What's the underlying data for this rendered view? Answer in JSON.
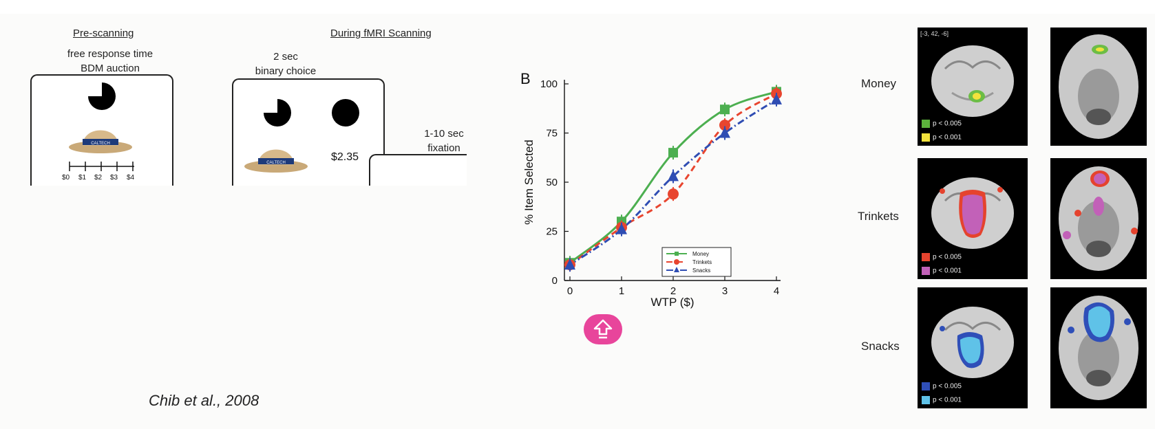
{
  "left_panel": {
    "pre_header": "Pre-scanning",
    "pre_line1": "free response time",
    "pre_line2": "BDM auction",
    "scale_labels": [
      "$0",
      "$1",
      "$2",
      "$3",
      "$4"
    ],
    "fmri_header": "During fMRI Scanning",
    "fmri_line1": "2 sec",
    "fmri_line2": "binary choice",
    "price": "$2.35",
    "fix_line1": "1-10 sec",
    "fix_line2": "fixation",
    "hat_band_text": "CALTECH",
    "citation": "Chib et al., 2008"
  },
  "chart_data": {
    "type": "line",
    "panel_letter": "B",
    "xlabel": "WTP ($)",
    "ylabel": "% Item Selected",
    "x": [
      0,
      1,
      2,
      3,
      4
    ],
    "xlim": [
      0,
      4
    ],
    "ylim": [
      0,
      100
    ],
    "yticks": [
      0,
      25,
      50,
      75,
      100
    ],
    "xticks": [
      0,
      1,
      2,
      3,
      4
    ],
    "legend_position": "bottom-right",
    "series": [
      {
        "name": "Money",
        "values": [
          9,
          30,
          65,
          87,
          96
        ],
        "color": "#4caf50",
        "marker": "square",
        "dash": "solid"
      },
      {
        "name": "Trinkets",
        "values": [
          8,
          27,
          44,
          79,
          95
        ],
        "color": "#e8452f",
        "marker": "circle",
        "dash": "dashed"
      },
      {
        "name": "Snacks",
        "values": [
          8,
          26,
          53,
          75,
          92
        ],
        "color": "#2f4db3",
        "marker": "triangle",
        "dash": "dashdot"
      }
    ],
    "fit_curves": true
  },
  "right_panel": {
    "coords_label": "[-3, 42, -6]",
    "rows": [
      {
        "label": "Money",
        "p1": "p < 0.005",
        "p2": "p < 0.001",
        "c1": "#5cb33c",
        "c2": "#f2e23c"
      },
      {
        "label": "Trinkets",
        "p1": "p < 0.005",
        "p2": "p < 0.001",
        "c1": "#e5432e",
        "c2": "#c261b8"
      },
      {
        "label": "Snacks",
        "p1": "p < 0.005",
        "p2": "p < 0.001",
        "c1": "#2f4fb8",
        "c2": "#5fc2e8"
      }
    ]
  },
  "overlay": {
    "icon": "up-arrow-icon",
    "color": "#e8459b"
  }
}
